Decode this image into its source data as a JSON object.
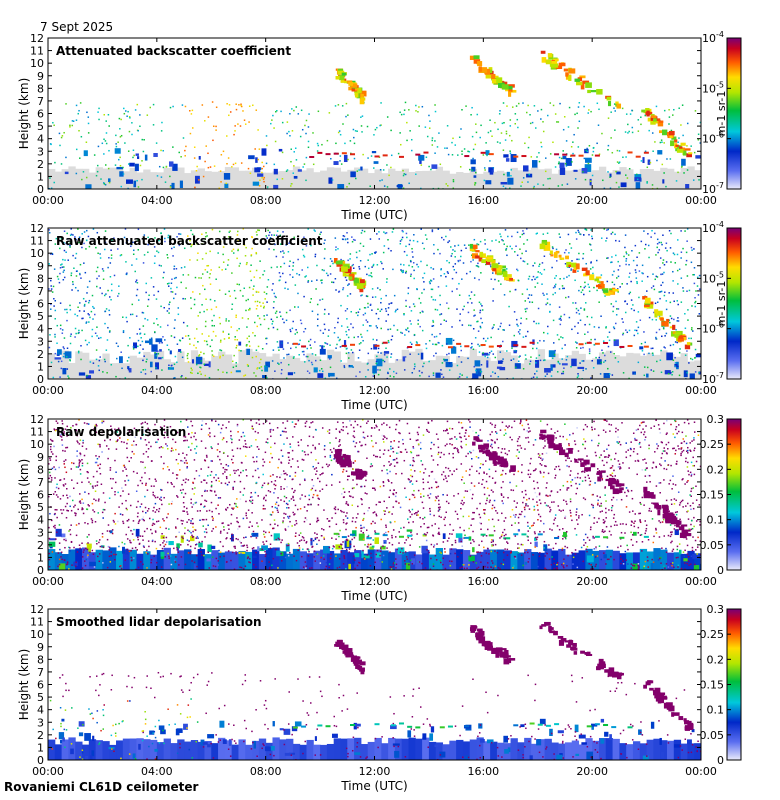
{
  "header": {
    "date": "7 Sept 2025"
  },
  "footer": {
    "station": "Rovaniemi CL61D ceilometer"
  },
  "chart_data": [
    {
      "type": "heatmap",
      "title": "Attenuated backscatter coefficient",
      "xlabel": "Time (UTC)",
      "ylabel": "Height (km)",
      "x_ticks": [
        "00:00",
        "04:00",
        "08:00",
        "12:00",
        "16:00",
        "20:00",
        "00:00"
      ],
      "y_ticks": [
        "0",
        "1",
        "2",
        "3",
        "4",
        "5",
        "6",
        "7",
        "8",
        "9",
        "10",
        "11",
        "12"
      ],
      "ylim": [
        0,
        12
      ],
      "colorbar": {
        "scale": "log",
        "range": [
          1e-07,
          0.0001
        ],
        "tick_labels": [
          "10-4",
          "10-5",
          "10-6",
          "10-7"
        ],
        "unit": "m-1 sr-1"
      },
      "noise": "low"
    },
    {
      "type": "heatmap",
      "title": "Raw attenuated backscatter coefficient",
      "xlabel": "Time (UTC)",
      "ylabel": "Height (km)",
      "x_ticks": [
        "00:00",
        "04:00",
        "08:00",
        "12:00",
        "16:00",
        "20:00",
        "00:00"
      ],
      "y_ticks": [
        "0",
        "1",
        "2",
        "3",
        "4",
        "5",
        "6",
        "7",
        "8",
        "9",
        "10",
        "11",
        "12"
      ],
      "ylim": [
        0,
        12
      ],
      "colorbar": {
        "scale": "log",
        "range": [
          1e-07,
          0.0001
        ],
        "tick_labels": [
          "10-4",
          "10-5",
          "10-6",
          "10-7"
        ],
        "unit": "m-1 sr-1"
      },
      "noise": "high"
    },
    {
      "type": "heatmap",
      "title": "Raw depolarisation",
      "xlabel": "Time (UTC)",
      "ylabel": "Height (km)",
      "x_ticks": [
        "00:00",
        "04:00",
        "08:00",
        "12:00",
        "16:00",
        "20:00",
        "00:00"
      ],
      "y_ticks": [
        "0",
        "1",
        "2",
        "3",
        "4",
        "5",
        "6",
        "7",
        "8",
        "9",
        "10",
        "11",
        "12"
      ],
      "ylim": [
        0,
        12
      ],
      "colorbar": {
        "scale": "linear",
        "range": [
          0,
          0.3
        ],
        "tick_labels": [
          "0.3",
          "0.25",
          "0.2",
          "0.15",
          "0.1",
          "0.05",
          "0"
        ]
      },
      "noise": "depol"
    },
    {
      "type": "heatmap",
      "title": "Smoothed lidar depolarisation",
      "xlabel": "Time (UTC)",
      "ylabel": "Height (km)",
      "x_ticks": [
        "00:00",
        "04:00",
        "08:00",
        "12:00",
        "16:00",
        "20:00",
        "00:00"
      ],
      "y_ticks": [
        "0",
        "1",
        "2",
        "3",
        "4",
        "5",
        "6",
        "7",
        "8",
        "9",
        "10",
        "11",
        "12"
      ],
      "ylim": [
        0,
        12
      ],
      "colorbar": {
        "scale": "linear",
        "range": [
          0,
          0.3
        ],
        "tick_labels": [
          "0.3",
          "0.25",
          "0.2",
          "0.15",
          "0.1",
          "0.05",
          "0"
        ]
      },
      "noise": "smooth"
    }
  ],
  "features": {
    "cirrus_bands": [
      {
        "t_start": 10.5,
        "t_end": 11.5,
        "h_top": 9.5,
        "h_bottom": 7.5
      },
      {
        "t_start": 15.5,
        "t_end": 17.0,
        "h_top": 10.5,
        "h_bottom": 8.0
      },
      {
        "t_start": 18.0,
        "t_end": 21.0,
        "h_top": 11.0,
        "h_bottom": 6.5
      },
      {
        "t_start": 21.8,
        "t_end": 23.6,
        "h_top": 6.5,
        "h_bottom": 2.5
      }
    ],
    "low_cloud_base_km": 2.8,
    "surface_layer_top_km": 1.2
  }
}
